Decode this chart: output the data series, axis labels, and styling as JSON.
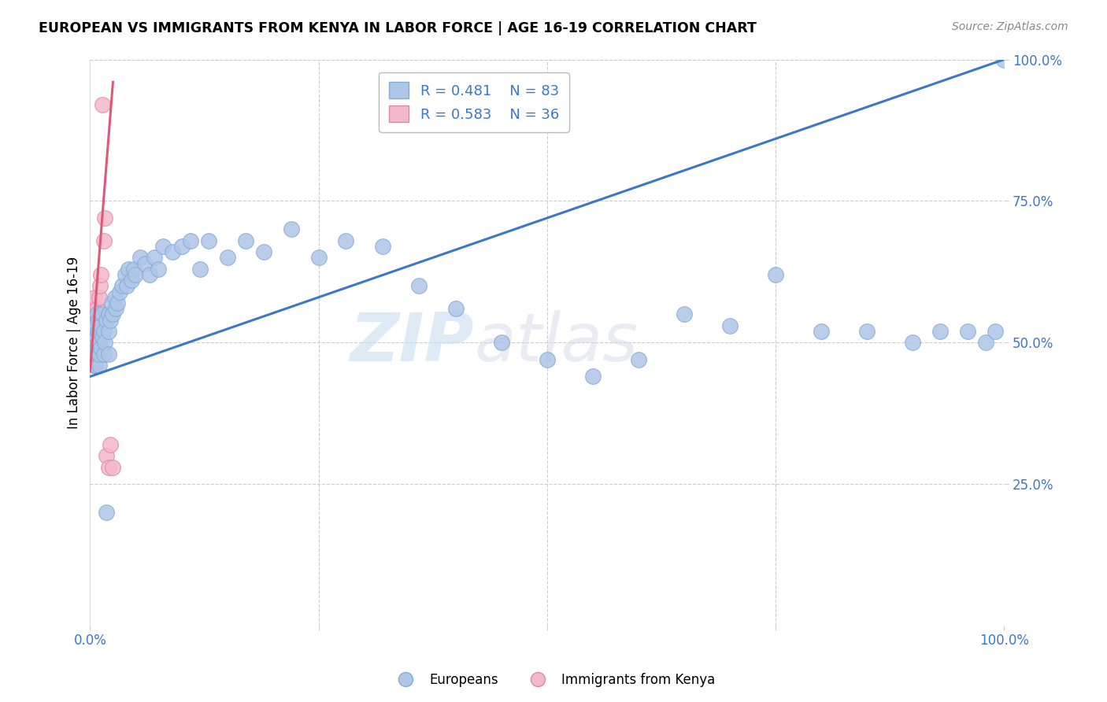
{
  "title": "EUROPEAN VS IMMIGRANTS FROM KENYA IN LABOR FORCE | AGE 16-19 CORRELATION CHART",
  "source": "Source: ZipAtlas.com",
  "ylabel": "In Labor Force | Age 16-19",
  "xmin": 0.0,
  "xmax": 1.0,
  "ymin": 0.0,
  "ymax": 1.0,
  "european_R": 0.481,
  "european_N": 83,
  "kenya_R": 0.583,
  "kenya_N": 36,
  "legend_label_1": "Europeans",
  "legend_label_2": "Immigrants from Kenya",
  "blue_color": "#aec6e8",
  "pink_color": "#f4b8cc",
  "blue_line_color": "#3a78c9",
  "pink_line_color": "#e05878",
  "blue_marker_edge": "#85aad4",
  "pink_marker_edge": "#dd8aa0",
  "watermark_zip": "ZIP",
  "watermark_atlas": "atlas",
  "background_color": "#ffffff",
  "grid_color": "#cccccc",
  "tick_label_color": "#3a78c9",
  "european_x": [
    0.005,
    0.005,
    0.005,
    0.005,
    0.005,
    0.005,
    0.005,
    0.005,
    0.006,
    0.006,
    0.006,
    0.007,
    0.007,
    0.007,
    0.008,
    0.008,
    0.009,
    0.009,
    0.01,
    0.01,
    0.01,
    0.01,
    0.012,
    0.012,
    0.013,
    0.013,
    0.015,
    0.015,
    0.016,
    0.018,
    0.018,
    0.02,
    0.02,
    0.02,
    0.022,
    0.024,
    0.025,
    0.027,
    0.028,
    0.03,
    0.032,
    0.035,
    0.038,
    0.04,
    0.042,
    0.045,
    0.048,
    0.05,
    0.055,
    0.06,
    0.065,
    0.07,
    0.075,
    0.08,
    0.09,
    0.1,
    0.11,
    0.12,
    0.13,
    0.15,
    0.17,
    0.19,
    0.22,
    0.25,
    0.28,
    0.32,
    0.36,
    0.4,
    0.45,
    0.5,
    0.55,
    0.6,
    0.65,
    0.7,
    0.75,
    0.8,
    0.85,
    0.9,
    0.93,
    0.96,
    0.98,
    0.99,
    1.0
  ],
  "european_y": [
    0.48,
    0.49,
    0.5,
    0.51,
    0.52,
    0.53,
    0.54,
    0.47,
    0.46,
    0.5,
    0.53,
    0.49,
    0.51,
    0.55,
    0.48,
    0.52,
    0.5,
    0.54,
    0.46,
    0.48,
    0.5,
    0.52,
    0.49,
    0.53,
    0.51,
    0.55,
    0.48,
    0.52,
    0.5,
    0.54,
    0.2,
    0.48,
    0.52,
    0.55,
    0.54,
    0.57,
    0.55,
    0.58,
    0.56,
    0.57,
    0.59,
    0.6,
    0.62,
    0.6,
    0.63,
    0.61,
    0.63,
    0.62,
    0.65,
    0.64,
    0.62,
    0.65,
    0.63,
    0.67,
    0.66,
    0.67,
    0.68,
    0.63,
    0.68,
    0.65,
    0.68,
    0.66,
    0.7,
    0.65,
    0.68,
    0.67,
    0.6,
    0.56,
    0.5,
    0.47,
    0.44,
    0.47,
    0.55,
    0.53,
    0.62,
    0.52,
    0.52,
    0.5,
    0.52,
    0.52,
    0.5,
    0.52,
    1.0
  ],
  "kenya_x": [
    0.002,
    0.002,
    0.002,
    0.002,
    0.003,
    0.003,
    0.003,
    0.003,
    0.004,
    0.004,
    0.004,
    0.005,
    0.005,
    0.005,
    0.005,
    0.006,
    0.006,
    0.006,
    0.007,
    0.007,
    0.007,
    0.008,
    0.008,
    0.009,
    0.009,
    0.01,
    0.01,
    0.011,
    0.012,
    0.013,
    0.015,
    0.016,
    0.018,
    0.02,
    0.022,
    0.025
  ],
  "kenya_y": [
    0.48,
    0.5,
    0.52,
    0.54,
    0.46,
    0.5,
    0.52,
    0.56,
    0.5,
    0.52,
    0.54,
    0.48,
    0.5,
    0.54,
    0.58,
    0.46,
    0.5,
    0.55,
    0.48,
    0.52,
    0.56,
    0.5,
    0.54,
    0.5,
    0.55,
    0.54,
    0.58,
    0.6,
    0.62,
    0.92,
    0.68,
    0.72,
    0.3,
    0.28,
    0.32,
    0.28
  ],
  "eu_trend_x0": 0.0,
  "eu_trend_y0": 0.44,
  "eu_trend_x1": 1.0,
  "eu_trend_y1": 1.0,
  "ken_trend_x0": 0.0,
  "ken_trend_y0": 0.45,
  "ken_trend_x1": 0.025,
  "ken_trend_y1": 0.96
}
